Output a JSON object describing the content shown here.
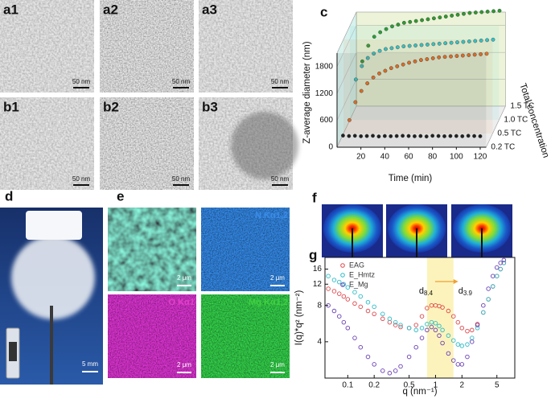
{
  "panels": [
    {
      "label": "a1",
      "scale_bar": "50 nm"
    },
    {
      "label": "a2",
      "scale_bar": "50 nm"
    },
    {
      "label": "a3",
      "scale_bar": "50 nm"
    },
    {
      "label": "b1",
      "scale_bar": "50 nm"
    },
    {
      "label": "b2",
      "scale_bar": "50 nm"
    },
    {
      "label": "b3",
      "scale_bar": "50 nm"
    }
  ],
  "panel_d": {
    "label": "d",
    "scale_bar": "5 mm"
  },
  "panel_e": {
    "label": "e",
    "maps": [
      {
        "scale_bar": "2 μm"
      },
      {
        "title": "N Kα1,2",
        "scale_bar": "2 μm"
      },
      {
        "title": "O Kα1",
        "scale_bar": "2 μm"
      },
      {
        "title": "Mg Kα1,2",
        "scale_bar": "2 μm"
      }
    ]
  },
  "panel_f": {
    "label": "f"
  },
  "chart_data": [
    {
      "type": "line3d",
      "panel_label": "c",
      "x_label": "Time (min)",
      "y_label": "Z-average diameter (nm)",
      "depth_label": "Total concentration",
      "x": [
        5,
        10,
        15,
        20,
        25,
        30,
        35,
        40,
        45,
        50,
        55,
        60,
        65,
        70,
        75,
        80,
        85,
        90,
        95,
        100,
        105,
        110,
        115,
        120
      ],
      "xlim": [
        0,
        125
      ],
      "xticks": [
        20,
        40,
        60,
        80,
        100,
        120
      ],
      "ylim": [
        0,
        2100
      ],
      "yticks": [
        0,
        600,
        1200,
        1800
      ],
      "series": [
        {
          "name": "0.2 TC",
          "color": "#222222",
          "values": [
            260,
            250,
            255,
            245,
            250,
            255,
            240,
            250,
            245,
            250,
            255,
            250,
            245,
            250,
            240,
            255,
            250,
            245,
            250,
            250,
            245,
            255,
            250,
            245
          ]
        },
        {
          "name": "0.5 TC",
          "color": "#e8742a",
          "values": [
            300,
            700,
            950,
            1120,
            1250,
            1340,
            1400,
            1460,
            1500,
            1540,
            1580,
            1610,
            1640,
            1660,
            1680,
            1700,
            1710,
            1720,
            1730,
            1740,
            1750,
            1760,
            1770,
            1780
          ]
        },
        {
          "name": "1.0 TC",
          "color": "#2cc6cf",
          "values": [
            900,
            1200,
            1380,
            1480,
            1540,
            1580,
            1600,
            1620,
            1640,
            1650,
            1660,
            1670,
            1680,
            1690,
            1700,
            1710,
            1720,
            1730,
            1740,
            1750,
            1760,
            1770,
            1780,
            1790
          ]
        },
        {
          "name": "1.5 TC",
          "color": "#2e9a2e",
          "values": [
            1000,
            1350,
            1550,
            1650,
            1720,
            1780,
            1820,
            1860,
            1880,
            1900,
            1920,
            1940,
            1960,
            1980,
            2000,
            2020,
            2040,
            2060,
            2080,
            2090,
            2100,
            2110,
            2120,
            2130
          ]
        }
      ]
    },
    {
      "type": "scatter",
      "panel_label": "g",
      "x_label": "q (nm⁻¹)",
      "y_label": "I(q)*q² (nm⁻²)",
      "log_x": true,
      "log_y": true,
      "legend": "upper left",
      "x": [
        0.06,
        0.07,
        0.08,
        0.09,
        0.1,
        0.12,
        0.14,
        0.17,
        0.2,
        0.25,
        0.3,
        0.35,
        0.4,
        0.5,
        0.6,
        0.7,
        0.8,
        0.9,
        1.0,
        1.1,
        1.2,
        1.4,
        1.6,
        1.8,
        2.0,
        2.3,
        2.6,
        3,
        3.5,
        4,
        4.5,
        5,
        5.5,
        6
      ],
      "xlim": [
        0.055,
        8
      ],
      "xticks": [
        0.1,
        0.2,
        0.5,
        1,
        2,
        5
      ],
      "ylim": [
        2,
        20
      ],
      "yticks": [
        4,
        8,
        12,
        16
      ],
      "highlight": [
        0.8,
        1.6
      ],
      "highlight_color": "#fbeea0",
      "annotations": [
        {
          "text": "d",
          "sub": "8.4"
        },
        {
          "text": "d",
          "sub": "3.9"
        }
      ],
      "series": [
        {
          "name": "EAG",
          "color": "#e0474c",
          "values": [
            11,
            10.5,
            10,
            9.5,
            9,
            8.3,
            7.8,
            7.2,
            6.8,
            6.2,
            5.8,
            5.5,
            5.3,
            5.2,
            5.5,
            6.5,
            7.6,
            8.0,
            8.0,
            7.9,
            7.7,
            7.2,
            6.5,
            5.8,
            5.2,
            4.9,
            5.0,
            5.6,
            7,
            9,
            11.5,
            14,
            16,
            18
          ]
        },
        {
          "name": "E_Hmtz",
          "color": "#2cbcc8",
          "values": [
            14,
            13,
            12.5,
            12,
            11.3,
            10.3,
            9.5,
            8.5,
            7.8,
            6.8,
            6.2,
            5.8,
            5.5,
            5.2,
            5.0,
            5.2,
            5.6,
            5.8,
            5.7,
            5.4,
            5.0,
            4.5,
            4.1,
            3.8,
            3.7,
            3.8,
            4.3,
            5.2,
            7,
            9,
            11.5,
            14,
            16,
            18
          ]
        },
        {
          "name": "E_Mg",
          "color": "#6a3fb5",
          "values": [
            8,
            7.2,
            6.5,
            5.8,
            5.2,
            4.3,
            3.6,
            3.0,
            2.6,
            2.3,
            2.2,
            2.3,
            2.5,
            3.0,
            3.6,
            4.3,
            5.0,
            5.3,
            5.0,
            4.5,
            3.9,
            3.2,
            2.8,
            2.6,
            2.6,
            3.0,
            4.0,
            5.5,
            8,
            11,
            14,
            16.5,
            18,
            19
          ]
        }
      ]
    }
  ]
}
